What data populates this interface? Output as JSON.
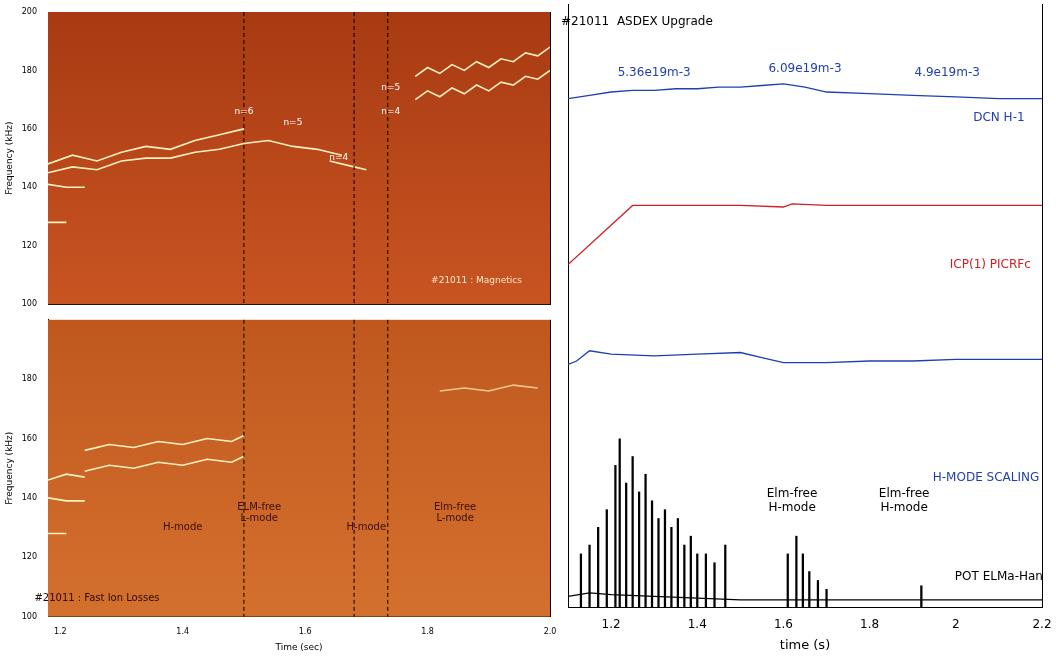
{
  "chart_data": [
    {
      "type": "line",
      "ylabel": "Frequency (kHz)",
      "tick_labels": "y",
      "xlim": [
        1.18,
        2.0
      ],
      "ylim": [
        100,
        200
      ],
      "yticks": [
        100,
        120,
        140,
        160,
        180,
        200
      ],
      "vlines": [
        1.5,
        1.68,
        1.735
      ],
      "series": [
        {
          "color": "#fff0c0",
          "x": [
            1.18,
            1.22,
            1.26,
            1.3,
            1.34,
            1.38,
            1.42,
            1.46,
            1.5
          ],
          "values": [
            148,
            151,
            149,
            152,
            154,
            153,
            156,
            158,
            160
          ]
        },
        {
          "color": "#fff0c0",
          "x": [
            1.18,
            1.22,
            1.26,
            1.3,
            1.34,
            1.38,
            1.42,
            1.46,
            1.5
          ],
          "values": [
            145,
            147,
            146,
            149,
            150,
            150,
            152,
            153,
            155
          ]
        },
        {
          "color": "#fff0c0",
          "x": [
            1.5,
            1.54,
            1.58,
            1.62,
            1.66
          ],
          "values": [
            155,
            156,
            154,
            153,
            151
          ]
        },
        {
          "color": "#fff0c0",
          "x": [
            1.64,
            1.68,
            1.7
          ],
          "values": [
            149,
            147,
            146
          ]
        },
        {
          "color": "#fff0c0",
          "x": [
            1.18,
            1.21,
            1.24
          ],
          "values": [
            141,
            140,
            140
          ]
        },
        {
          "color": "#fff0c0",
          "x": [
            1.18,
            1.21
          ],
          "values": [
            128,
            128
          ]
        },
        {
          "color": "#fff0c0",
          "x": [
            1.78,
            1.8,
            1.82,
            1.84,
            1.86,
            1.88,
            1.9,
            1.92,
            1.94,
            1.96,
            1.98,
            2.0
          ],
          "values": [
            178,
            181,
            179,
            182,
            180,
            183,
            181,
            184,
            183,
            186,
            185,
            188
          ]
        },
        {
          "color": "#fff0c0",
          "x": [
            1.78,
            1.8,
            1.82,
            1.84,
            1.86,
            1.88,
            1.9,
            1.92,
            1.94,
            1.96,
            1.98,
            2.0
          ],
          "values": [
            170,
            173,
            171,
            174,
            172,
            175,
            173,
            176,
            175,
            178,
            177,
            180
          ]
        }
      ],
      "annotations": [
        {
          "text": "n=6",
          "x": 1.5,
          "y": 166,
          "color": "#ffffff"
        },
        {
          "text": "n=5",
          "x": 1.58,
          "y": 162,
          "color": "#ffffff"
        },
        {
          "text": "n=4",
          "x": 1.655,
          "y": 150,
          "color": "#ffffff"
        },
        {
          "text": "n=5",
          "x": 1.74,
          "y": 174,
          "color": "#ffffff"
        },
        {
          "text": "n=4",
          "x": 1.74,
          "y": 166,
          "color": "#ffffff"
        },
        {
          "text": "#21011 : Magnetics",
          "x": 1.88,
          "y": 108,
          "color": "#ffe8c8"
        }
      ]
    },
    {
      "type": "line",
      "ylabel": "Frequency (kHz)",
      "xlabel": "Time (sec)",
      "xlim": [
        1.18,
        2.0
      ],
      "xticks": [
        1.2,
        1.4,
        1.6,
        1.8,
        {
          "value": 2,
          "label": "2.0"
        }
      ],
      "ylim": [
        100,
        200
      ],
      "yticks": [
        100,
        120,
        140,
        160,
        180
      ],
      "vlines": [
        1.5,
        1.68,
        1.735
      ],
      "series": [
        {
          "color": "#fff0c0",
          "x": [
            1.24,
            1.28,
            1.32,
            1.36,
            1.4,
            1.44,
            1.48,
            1.5
          ],
          "values": [
            156,
            158,
            157,
            159,
            158,
            160,
            159,
            161
          ]
        },
        {
          "color": "#fff0c0",
          "x": [
            1.24,
            1.28,
            1.32,
            1.36,
            1.4,
            1.44,
            1.48,
            1.5
          ],
          "values": [
            149,
            151,
            150,
            152,
            151,
            153,
            152,
            154
          ]
        },
        {
          "color": "#fff0c0",
          "x": [
            1.18,
            1.21,
            1.24
          ],
          "values": [
            146,
            148,
            147
          ]
        },
        {
          "color": "#fff0c0",
          "x": [
            1.18,
            1.21,
            1.24
          ],
          "values": [
            140,
            139,
            139
          ]
        },
        {
          "color": "#fff0c0",
          "x": [
            1.18,
            1.21
          ],
          "values": [
            128,
            128
          ]
        },
        {
          "color": "#f5c890",
          "x": [
            1.82,
            1.86,
            1.9,
            1.94,
            1.98
          ],
          "values": [
            176,
            177,
            176,
            178,
            177
          ]
        }
      ],
      "annotations": [
        {
          "text": "#21011 : Fast Ion Losses",
          "x": 1.26,
          "y": 106,
          "color": "#2a0a00"
        },
        {
          "text": "H-mode",
          "x": 1.4,
          "y": 130,
          "color": "#3a1000"
        },
        {
          "text": "ELM-free L-mode",
          "x": 1.525,
          "y": 135,
          "color": "#3a1000"
        },
        {
          "text": "H-mode",
          "x": 1.7,
          "y": 130,
          "color": "#3a1000"
        },
        {
          "text": "Elm-free L-mode",
          "x": 1.845,
          "y": 135,
          "color": "#3a1000"
        }
      ]
    },
    {
      "type": "line",
      "tick_labels": false,
      "xlim": [
        1.1,
        2.2
      ],
      "ylim": [
        0,
        1
      ],
      "series": [
        {
          "color": "#1f3fb0",
          "x": [
            1.1,
            1.15,
            1.2,
            1.25,
            1.3,
            1.35,
            1.4,
            1.45,
            1.5,
            1.55,
            1.6,
            1.65,
            1.7,
            1.8,
            1.9,
            2.0,
            2.1,
            2.2
          ],
          "values": [
            0.42,
            0.44,
            0.46,
            0.47,
            0.47,
            0.48,
            0.48,
            0.49,
            0.49,
            0.5,
            0.51,
            0.49,
            0.46,
            0.45,
            0.44,
            0.43,
            0.42,
            0.42
          ]
        }
      ],
      "annotations": [
        {
          "text": "#21011  ASDEX Upgrade",
          "x": 1.26,
          "y": 0.89,
          "color": "#000000"
        },
        {
          "text": "5.36e19m-3",
          "x": 1.3,
          "y": 0.58,
          "color": "#1f3fb0"
        },
        {
          "text": "6.09e19m-3",
          "x": 1.65,
          "y": 0.6,
          "color": "#1f3fb0"
        },
        {
          "text": "4.9e19m-3",
          "x": 1.98,
          "y": 0.58,
          "color": "#1f3fb0"
        },
        {
          "text": "DCN H-1",
          "x": 2.1,
          "y": 0.3,
          "color": "#1f3fb0"
        }
      ]
    },
    {
      "type": "line",
      "tick_labels": false,
      "xlim": [
        1.1,
        2.2
      ],
      "ylim": [
        0,
        1
      ],
      "series": [
        {
          "color": "#d02020",
          "x": [
            1.1,
            1.25,
            1.3,
            1.5,
            1.6,
            1.62,
            1.7,
            1.9,
            2.0,
            2.2
          ],
          "values": [
            0.39,
            0.76,
            0.76,
            0.76,
            0.75,
            0.77,
            0.76,
            0.76,
            0.76,
            0.76
          ]
        }
      ],
      "annotations": [
        {
          "text": "ICP(1) PICRFc",
          "x": 2.08,
          "y": 0.39,
          "color": "#d02020"
        }
      ]
    },
    {
      "type": "line",
      "tick_labels": false,
      "xlim": [
        1.1,
        2.2
      ],
      "ylim": [
        0,
        1
      ],
      "series": [
        {
          "color": "#1f3fb0",
          "x": [
            1.1,
            1.12,
            1.15,
            1.2,
            1.3,
            1.4,
            1.5,
            1.55,
            1.6,
            1.7,
            1.8,
            1.9,
            2.0,
            2.2
          ],
          "values": [
            0.78,
            0.8,
            0.86,
            0.84,
            0.83,
            0.84,
            0.85,
            0.82,
            0.79,
            0.79,
            0.8,
            0.8,
            0.81,
            0.81
          ]
        }
      ],
      "annotations": [
        {
          "text": "H-MODE SCALING",
          "x": 2.07,
          "y": 0.11,
          "color": "#1f3fb0"
        }
      ]
    },
    {
      "type": "line",
      "tick_labels": "x",
      "xlabel": "time (s)",
      "xlim": [
        1.1,
        2.2
      ],
      "xticks": [
        1.2,
        1.4,
        1.6,
        1.8,
        2,
        2.2
      ],
      "ylim": [
        0,
        1
      ],
      "series": [
        {
          "color": "#000000",
          "x": [
            1.1,
            1.15,
            1.2,
            1.3,
            1.5,
            1.7,
            2.0,
            2.2
          ],
          "values": [
            0.06,
            0.08,
            0.07,
            0.06,
            0.04,
            0.04,
            0.04,
            0.04
          ]
        },
        {
          "type": "bar",
          "color": "#000000",
          "x": [
            1.13,
            1.15,
            1.17,
            1.19,
            1.21,
            1.22,
            1.235,
            1.25,
            1.265,
            1.28,
            1.295,
            1.31,
            1.325,
            1.34,
            1.355,
            1.37,
            1.385,
            1.4,
            1.42,
            1.44,
            1.465,
            1.61,
            1.63,
            1.645,
            1.66,
            1.68,
            1.7,
            1.92
          ],
          "values": [
            0.3,
            0.35,
            0.45,
            0.55,
            0.8,
            0.95,
            0.7,
            0.85,
            0.65,
            0.75,
            0.6,
            0.5,
            0.55,
            0.45,
            0.5,
            0.35,
            0.4,
            0.3,
            0.3,
            0.25,
            0.35,
            0.3,
            0.4,
            0.3,
            0.2,
            0.15,
            0.1,
            0.12
          ]
        }
      ],
      "annotations": [
        {
          "text": "Elm-free H-mode",
          "x": 1.62,
          "y": 0.6,
          "color": "#000000"
        },
        {
          "text": "Elm-free H-mode",
          "x": 1.88,
          "y": 0.6,
          "color": "#000000"
        },
        {
          "text": "POT ELMa-Han",
          "x": 2.1,
          "y": 0.17,
          "color": "#000000"
        }
      ]
    }
  ]
}
